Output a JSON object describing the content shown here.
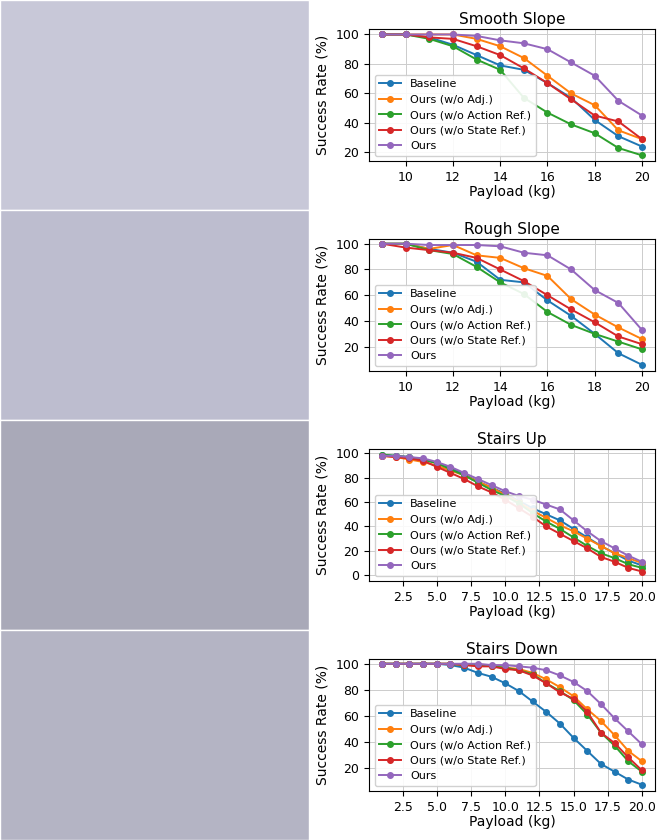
{
  "chart_data": [
    {
      "type": "line",
      "title": "Smooth Slope",
      "x_label": "Payload (kg)",
      "y_label": "Success Rate (%)",
      "x": [
        9,
        10,
        11,
        12,
        13,
        14,
        15,
        16,
        17,
        18,
        19,
        20
      ],
      "xlim": [
        8.45,
        20.55
      ],
      "xticks": [
        10,
        12,
        14,
        16,
        18,
        20
      ],
      "ylim": [
        14,
        104
      ],
      "yticks": [
        20,
        40,
        60,
        80,
        100
      ],
      "grid": true,
      "legend": "lower left",
      "marker": "o",
      "line_style": "solid",
      "series": [
        {
          "name": "Baseline",
          "color": "#1f77b4",
          "values": [
            100,
            100,
            98,
            93,
            86,
            79,
            76,
            67,
            57,
            42,
            31,
            24
          ]
        },
        {
          "name": "Ours (w/o Adj.)",
          "color": "#ff7f0e",
          "values": [
            100,
            100,
            100,
            100,
            97,
            92,
            84,
            72,
            60,
            52,
            35,
            29
          ]
        },
        {
          "name": "Ours (w/o Action Ref.)",
          "color": "#2ca02c",
          "values": [
            100,
            100,
            97,
            92,
            83,
            76,
            57,
            47,
            39,
            33,
            23,
            18
          ]
        },
        {
          "name": "Ours (w/o State Ref.)",
          "color": "#d62728",
          "values": [
            100,
            100,
            98,
            97,
            92,
            86,
            77,
            67,
            56,
            45,
            41,
            29
          ]
        },
        {
          "name": "Ours",
          "color": "#9467bd",
          "values": [
            100,
            100,
            100,
            100,
            99,
            96,
            94,
            90,
            81,
            72,
            55,
            45
          ]
        }
      ]
    },
    {
      "type": "line",
      "title": "Rough Slope",
      "x_label": "Payload (kg)",
      "y_label": "Success Rate (%)",
      "x": [
        9,
        10,
        11,
        12,
        13,
        14,
        15,
        16,
        17,
        18,
        19,
        20
      ],
      "xlim": [
        8.45,
        20.55
      ],
      "xticks": [
        10,
        12,
        14,
        16,
        18,
        20
      ],
      "ylim": [
        1,
        104
      ],
      "yticks": [
        20,
        40,
        60,
        80,
        100
      ],
      "grid": true,
      "legend": "lower left",
      "marker": "o",
      "line_style": "solid",
      "series": [
        {
          "name": "Baseline",
          "color": "#1f77b4",
          "values": [
            100,
            100,
            96,
            93,
            86,
            72,
            70,
            56,
            44,
            30,
            15,
            6
          ]
        },
        {
          "name": "Ours (w/o Adj.)",
          "color": "#ff7f0e",
          "values": [
            100,
            100,
            96,
            99,
            91,
            89,
            81,
            75,
            57,
            45,
            35,
            26
          ]
        },
        {
          "name": "Ours (w/o Action Ref.)",
          "color": "#2ca02c",
          "values": [
            100,
            100,
            95,
            92,
            82,
            70,
            61,
            47,
            37,
            30,
            24,
            18
          ]
        },
        {
          "name": "Ours (w/o State Ref.)",
          "color": "#d62728",
          "values": [
            100,
            97,
            95,
            93,
            89,
            80,
            71,
            60,
            49,
            39,
            28,
            22
          ]
        },
        {
          "name": "Ours",
          "color": "#9467bd",
          "values": [
            100,
            100,
            99,
            99,
            99,
            98,
            93,
            91,
            80,
            64,
            54,
            33
          ]
        }
      ]
    },
    {
      "type": "line",
      "title": "Stairs Up",
      "x_label": "Payload (kg)",
      "y_label": "Success Rate (%)",
      "x": [
        1,
        2,
        3,
        4,
        5,
        6,
        7,
        8,
        9,
        10,
        11,
        12,
        13,
        14,
        15,
        16,
        17,
        18,
        19,
        20
      ],
      "xlim": [
        0.05,
        20.95
      ],
      "xticks": [
        {
          "value": 2.5,
          "label": "2.5"
        },
        {
          "value": 5,
          "label": "5.0"
        },
        {
          "value": 7.5,
          "label": "7.5"
        },
        {
          "value": 10,
          "label": "10.0"
        },
        {
          "value": 12.5,
          "label": "12.5"
        },
        {
          "value": 15,
          "label": "15.0"
        },
        {
          "value": 17.5,
          "label": "17.5"
        },
        {
          "value": 20,
          "label": "20.0"
        }
      ],
      "ylim": [
        -5,
        104
      ],
      "yticks": [
        0,
        20,
        40,
        60,
        80,
        100
      ],
      "grid": true,
      "legend": "lower left",
      "marker": "o",
      "line_style": "solid",
      "series": [
        {
          "name": "Baseline",
          "color": "#1f77b4",
          "values": [
            99,
            98,
            97,
            95,
            92,
            88,
            83,
            77,
            72,
            67,
            61,
            55,
            50,
            45,
            38,
            31,
            24,
            18,
            12,
            8
          ]
        },
        {
          "name": "Ours (w/o Adj.)",
          "color": "#ff7f0e",
          "values": [
            98,
            97,
            95,
            93,
            90,
            86,
            82,
            77,
            72,
            66,
            60,
            53,
            47,
            41,
            36,
            30,
            24,
            18,
            14,
            10
          ]
        },
        {
          "name": "Ours (w/o Action Ref.)",
          "color": "#2ca02c",
          "values": [
            99,
            98,
            97,
            95,
            92,
            87,
            82,
            76,
            70,
            65,
            59,
            51,
            44,
            38,
            31,
            24,
            18,
            14,
            9,
            6
          ]
        },
        {
          "name": "Ours (w/o State Ref.)",
          "color": "#d62728",
          "values": [
            98,
            97,
            96,
            94,
            89,
            84,
            79,
            73,
            68,
            62,
            55,
            48,
            40,
            34,
            28,
            22,
            15,
            11,
            6,
            3
          ]
        },
        {
          "name": "Ours",
          "color": "#9467bd",
          "values": [
            98,
            98,
            97,
            96,
            93,
            89,
            84,
            79,
            74,
            69,
            65,
            62,
            58,
            54,
            45,
            36,
            28,
            22,
            16,
            11
          ]
        }
      ]
    },
    {
      "type": "line",
      "title": "Stairs Down",
      "x_label": "Payload (kg)",
      "y_label": "Success Rate (%)",
      "x": [
        1,
        2,
        3,
        4,
        5,
        6,
        7,
        8,
        9,
        10,
        11,
        12,
        13,
        14,
        15,
        16,
        17,
        18,
        19,
        20
      ],
      "xlim": [
        0.05,
        20.95
      ],
      "xticks": [
        {
          "value": 2.5,
          "label": "2.5"
        },
        {
          "value": 5,
          "label": "5.0"
        },
        {
          "value": 7.5,
          "label": "7.5"
        },
        {
          "value": 10,
          "label": "10.0"
        },
        {
          "value": 12.5,
          "label": "12.5"
        },
        {
          "value": 15,
          "label": "15.0"
        },
        {
          "value": 17.5,
          "label": "17.5"
        },
        {
          "value": 20,
          "label": "20.0"
        }
      ],
      "ylim": [
        2,
        104
      ],
      "yticks": [
        20,
        40,
        60,
        80,
        100
      ],
      "grid": true,
      "legend": "lower left",
      "marker": "o",
      "line_style": "solid",
      "series": [
        {
          "name": "Baseline",
          "color": "#1f77b4",
          "values": [
            100,
            100,
            100,
            100,
            100,
            99,
            97,
            93,
            90,
            85,
            79,
            71,
            63,
            54,
            43,
            33,
            23,
            17,
            11,
            7
          ]
        },
        {
          "name": "Ours (w/o Adj.)",
          "color": "#ff7f0e",
          "values": [
            100,
            100,
            100,
            100,
            100,
            100,
            99,
            99,
            98,
            97,
            96,
            93,
            88,
            82,
            75,
            65,
            56,
            45,
            33,
            25
          ]
        },
        {
          "name": "Ours (w/o Action Ref.)",
          "color": "#2ca02c",
          "values": [
            100,
            100,
            100,
            100,
            100,
            100,
            99,
            99,
            98,
            97,
            95,
            92,
            85,
            79,
            72,
            61,
            47,
            37,
            25,
            17
          ]
        },
        {
          "name": "Ours (w/o State Ref.)",
          "color": "#d62728",
          "values": [
            100,
            100,
            100,
            100,
            100,
            100,
            99,
            98,
            98,
            96,
            95,
            91,
            85,
            78,
            73,
            63,
            47,
            39,
            28,
            18
          ]
        },
        {
          "name": "Ours",
          "color": "#9467bd",
          "values": [
            100,
            100,
            100,
            100,
            100,
            100,
            100,
            100,
            99,
            99,
            98,
            97,
            95,
            91,
            86,
            79,
            69,
            58,
            48,
            38
          ]
        }
      ]
    }
  ]
}
